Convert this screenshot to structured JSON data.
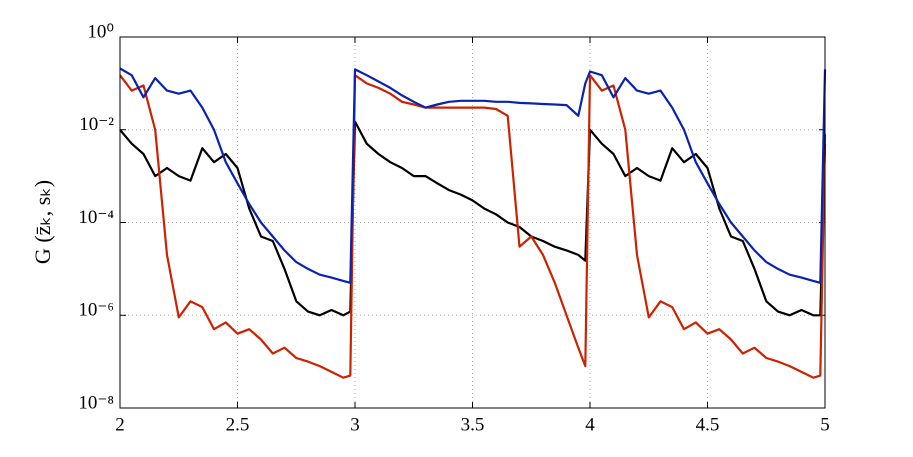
{
  "chart_data": {
    "type": "line",
    "ylabel": "G (z̄ₖ, sₖ)",
    "x": [
      2.0,
      2.05,
      2.1,
      2.15,
      2.2,
      2.25,
      2.3,
      2.35,
      2.4,
      2.45,
      2.5,
      2.55,
      2.6,
      2.65,
      2.7,
      2.75,
      2.8,
      2.85,
      2.9,
      2.95,
      2.98,
      3.0,
      3.05,
      3.1,
      3.15,
      3.2,
      3.25,
      3.3,
      3.35,
      3.4,
      3.45,
      3.5,
      3.55,
      3.6,
      3.65,
      3.7,
      3.75,
      3.8,
      3.85,
      3.9,
      3.95,
      3.98,
      4.0,
      4.05,
      4.1,
      4.15,
      4.2,
      4.25,
      4.3,
      4.35,
      4.4,
      4.45,
      4.5,
      4.55,
      4.6,
      4.65,
      4.7,
      4.75,
      4.8,
      4.85,
      4.9,
      4.95,
      4.98,
      5.0
    ],
    "series": [
      {
        "color": "#000000",
        "values": [
          0.01,
          0.005,
          0.003,
          0.001,
          0.0015,
          0.001,
          0.0008,
          0.004,
          0.002,
          0.003,
          0.0015,
          0.0002,
          5e-05,
          4e-05,
          1e-05,
          2e-06,
          1.2e-06,
          1e-06,
          1.3e-06,
          1e-06,
          1.2e-06,
          0.015,
          0.005,
          0.003,
          0.002,
          0.0015,
          0.001,
          0.001,
          0.0007,
          0.0005,
          0.0004,
          0.0003,
          0.0002,
          0.00015,
          0.0001,
          8e-05,
          5e-05,
          4e-05,
          3e-05,
          2.5e-05,
          2e-05,
          1.5e-05,
          0.01,
          0.005,
          0.003,
          0.001,
          0.0015,
          0.001,
          0.0008,
          0.004,
          0.002,
          0.003,
          0.0015,
          0.0002,
          5e-05,
          4e-05,
          1e-05,
          2e-06,
          1.2e-06,
          1e-06,
          1.3e-06,
          1e-06,
          1e-06,
          0.005
        ]
      },
      {
        "color": "#cc2200",
        "values": [
          0.15,
          0.07,
          0.09,
          0.01,
          2e-05,
          9e-07,
          2e-06,
          1.5e-06,
          5e-07,
          7e-07,
          4e-07,
          5e-07,
          3e-07,
          1.5e-07,
          2e-07,
          1.2e-07,
          1e-07,
          8e-08,
          6e-08,
          4.5e-08,
          5e-08,
          0.15,
          0.1,
          0.08,
          0.06,
          0.04,
          0.035,
          0.03,
          0.03,
          0.03,
          0.03,
          0.03,
          0.03,
          0.028,
          0.02,
          3e-05,
          5e-05,
          2e-05,
          5e-06,
          1e-06,
          2e-07,
          8e-08,
          0.15,
          0.07,
          0.09,
          0.01,
          2e-05,
          9e-07,
          2e-06,
          1.5e-06,
          5e-07,
          7e-07,
          4e-07,
          5e-07,
          3e-07,
          1.5e-07,
          2e-07,
          1.2e-07,
          1e-07,
          8e-08,
          6e-08,
          4.5e-08,
          5e-08,
          0.008
        ]
      },
      {
        "color": "#0a22b0",
        "values": [
          0.21,
          0.15,
          0.05,
          0.13,
          0.07,
          0.06,
          0.07,
          0.03,
          0.01,
          0.002,
          0.0007,
          0.00025,
          0.0001,
          5e-05,
          2.5e-05,
          1.4e-05,
          1e-05,
          7.5e-06,
          6.5e-06,
          5.5e-06,
          5e-06,
          0.2,
          0.15,
          0.11,
          0.08,
          0.055,
          0.04,
          0.03,
          0.035,
          0.04,
          0.042,
          0.042,
          0.042,
          0.04,
          0.04,
          0.038,
          0.037,
          0.036,
          0.035,
          0.034,
          0.02,
          0.1,
          0.18,
          0.15,
          0.05,
          0.13,
          0.07,
          0.06,
          0.07,
          0.03,
          0.01,
          0.002,
          0.0007,
          0.00025,
          0.0001,
          5e-05,
          2.5e-05,
          1.4e-05,
          1e-05,
          7.5e-06,
          6.5e-06,
          5.5e-06,
          5e-06,
          0.2
        ]
      }
    ],
    "xlim": [
      2,
      5
    ],
    "xticks": [
      2,
      2.5,
      3,
      3.5,
      4,
      4.5,
      5
    ],
    "ylim": [
      1e-08,
      1
    ],
    "ylog": true,
    "yticks": [
      {
        "value": 1e-08,
        "label": "10⁻⁸"
      },
      {
        "value": 1e-06,
        "label": "10⁻⁶"
      },
      {
        "value": 0.0001,
        "label": "10⁻⁴"
      },
      {
        "value": 0.01,
        "label": "10⁻²"
      },
      {
        "value": 1,
        "label": "10⁰"
      }
    ],
    "grid": true
  }
}
